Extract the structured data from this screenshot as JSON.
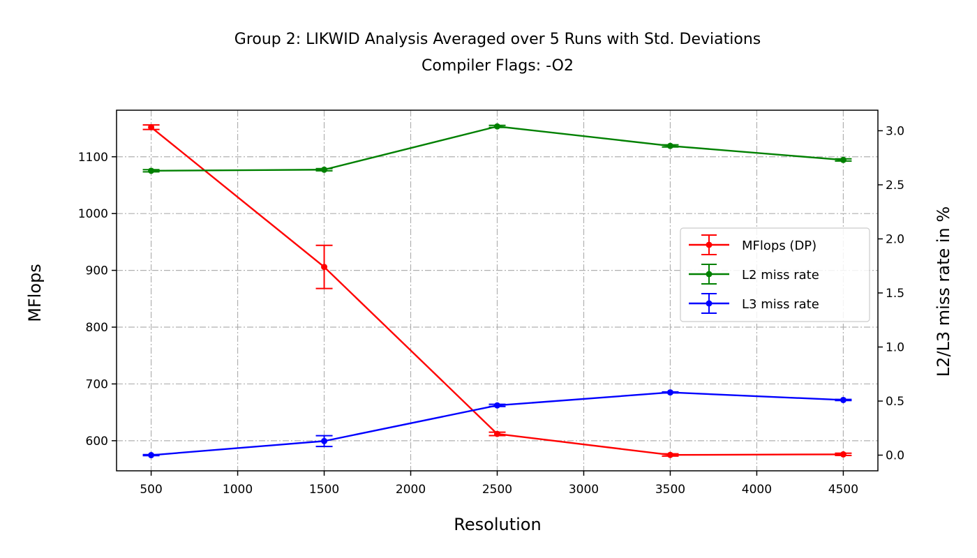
{
  "chart_data": {
    "type": "line",
    "title": "Group 2: LIKWID Analysis Averaged over 5 Runs with Std. Deviations",
    "subtitle": "Compiler Flags: -O2",
    "xlabel": "Resolution",
    "ylabel": "MFlops",
    "y2label": "L2/L3 miss rate in %",
    "x": [
      500,
      1500,
      2500,
      3500,
      4500
    ],
    "xlim": [
      300,
      4700
    ],
    "ylim": [
      547,
      1182
    ],
    "y2lim": [
      -0.145,
      3.19
    ],
    "x_ticks": [
      "500",
      "1000",
      "1500",
      "2000",
      "2500",
      "3000",
      "3500",
      "4000",
      "4500"
    ],
    "y_ticks": [
      "600",
      "700",
      "800",
      "900",
      "1000",
      "1100"
    ],
    "y2_ticks": [
      "0.0",
      "0.5",
      "1.0",
      "1.5",
      "2.0",
      "2.5",
      "3.0"
    ],
    "grid": true,
    "legend_position": "center-right",
    "series": [
      {
        "name": "MFlops (DP)",
        "axis": "left",
        "color": "#ff0000",
        "values": [
          1152,
          906,
          612,
          575,
          576
        ],
        "errors": [
          4,
          38,
          3,
          2,
          2
        ]
      },
      {
        "name": "L2 miss rate",
        "axis": "right",
        "color": "#008000",
        "values": [
          2.63,
          2.64,
          3.04,
          2.86,
          2.73
        ],
        "errors": [
          0.01,
          0.01,
          0.01,
          0.01,
          0.01
        ]
      },
      {
        "name": "L3 miss rate",
        "axis": "right",
        "color": "#0000ff",
        "values": [
          0.0,
          0.13,
          0.46,
          0.58,
          0.51
        ],
        "errors": [
          0.005,
          0.05,
          0.01,
          0.005,
          0.005
        ]
      }
    ]
  }
}
